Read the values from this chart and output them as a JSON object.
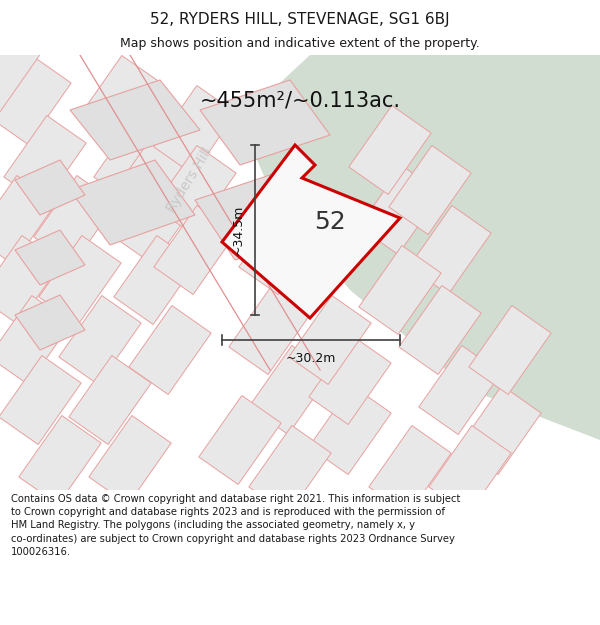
{
  "title_line1": "52, RYDERS HILL, STEVENAGE, SG1 6BJ",
  "title_line2": "Map shows position and indicative extent of the property.",
  "area_label": "~455m²/~0.113ac.",
  "height_label": "~34.5m",
  "width_label": "~30.2m",
  "plot_number": "52",
  "road_label": "Ryders Hill",
  "footer_text": "Contains OS data © Crown copyright and database right 2021. This information is subject to Crown copyright and database rights 2023 and is reproduced with the permission of HM Land Registry. The polygons (including the associated geometry, namely x, y co-ordinates) are subject to Crown copyright and database rights 2023 Ordnance Survey 100026316.",
  "map_bg": "#ffffff",
  "green_area_color": "#d0ddd0",
  "parcel_fill": "#e8e8e8",
  "parcel_outline": "#e8a0a0",
  "plot_outline": "#cc0000",
  "plot_fill": "#ffffff",
  "dim_line_color": "#404040",
  "road_label_color": "#c0c0c0",
  "text_color": "#1a1a1a",
  "footer_color": "#1a1a1a",
  "title_fontsize": 11,
  "subtitle_fontsize": 9,
  "area_fontsize": 15,
  "dim_fontsize": 9,
  "plot_num_fontsize": 18,
  "road_label_fontsize": 10,
  "footer_fontsize": 7.2
}
